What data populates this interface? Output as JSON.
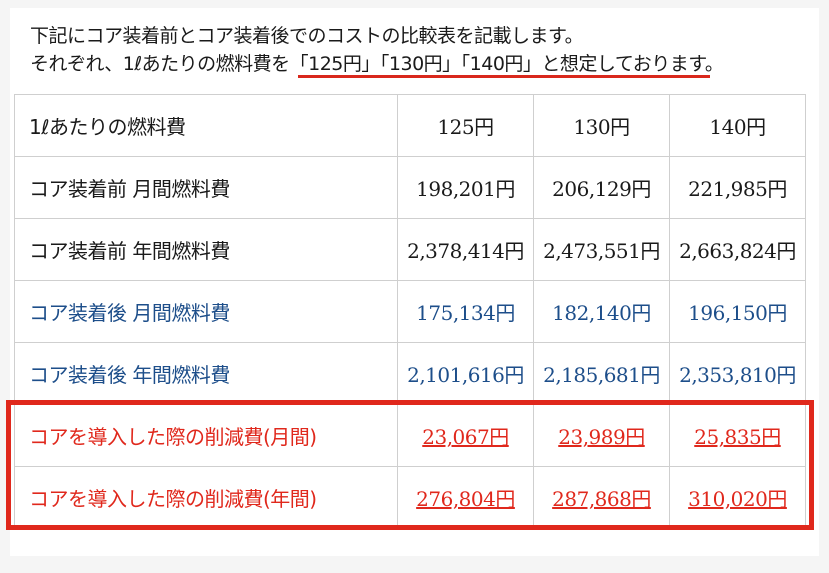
{
  "intro": {
    "line1": "下記にコア装着前とコア装着後でのコストの比較表を記載します。",
    "line2": "それぞれ、1ℓあたりの燃料費を「125円」「130円」「140円」と想定しております。"
  },
  "table": {
    "header": [
      "1ℓあたりの燃料費",
      "125円",
      "130円",
      "140円"
    ],
    "rows": [
      {
        "label": "コア装着前 月間燃料費",
        "values": [
          "198,201円",
          "206,129円",
          "221,985円"
        ]
      },
      {
        "label": "コア装着前 年間燃料費",
        "values": [
          "2,378,414円",
          "2,473,551円",
          "2,663,824円"
        ]
      },
      {
        "label": "コア装着後 月間燃料費",
        "values": [
          "175,134円",
          "182,140円",
          "196,150円"
        ]
      },
      {
        "label": "コア装着後 年間燃料費",
        "values": [
          "2,101,616円",
          "2,185,681円",
          "2,353,810円"
        ]
      },
      {
        "label": "コアを導入した際の削減費(月間)",
        "values": [
          "23,067円",
          "23,989円",
          "25,835円"
        ]
      },
      {
        "label": "コアを導入した際の削減費(年間)",
        "values": [
          "276,804円",
          "287,868円",
          "310,020円"
        ]
      }
    ]
  },
  "colors": {
    "text": "#1a1a1a",
    "after_rows": "#1d4e8a",
    "savings_rows": "#e0281c",
    "highlight_box": "#e0281c",
    "grid": "#cfcfcf"
  }
}
